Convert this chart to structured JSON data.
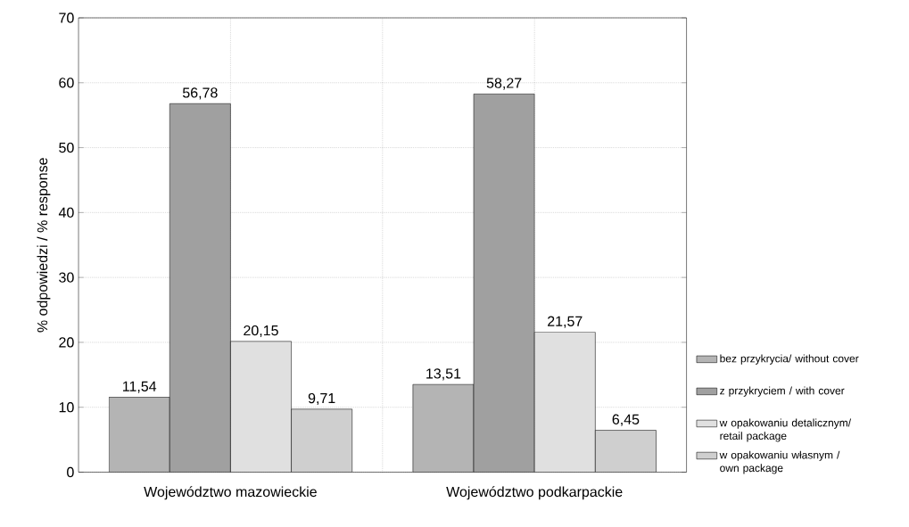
{
  "chart_data": {
    "type": "bar",
    "ylabel": "% odpowiedzi / % response",
    "categories": [
      "Województwo mazowieckie",
      "Województwo podkarpackie"
    ],
    "series": [
      {
        "name": "bez przykrycia/ without cover",
        "color": "#b4b4b4",
        "values": [
          11.54,
          13.51
        ],
        "value_labels": [
          "11,54",
          "13,51"
        ]
      },
      {
        "name": "z przykryciem / with cover",
        "color": "#a0a0a0",
        "values": [
          56.78,
          58.27
        ],
        "value_labels": [
          "56,78",
          "58,27"
        ]
      },
      {
        "name": "w opakowaniu detalicznym/ retail package",
        "color": "#e0e0e0",
        "values": [
          20.15,
          21.57
        ],
        "value_labels": [
          "20,15",
          "21,57"
        ]
      },
      {
        "name": "w opakowaniu własnym / own package",
        "color": "#cfcfcf",
        "values": [
          9.71,
          6.45
        ],
        "value_labels": [
          "9,71",
          "6,45"
        ]
      }
    ],
    "ylim": [
      0,
      70
    ],
    "yticks": [
      0,
      10,
      20,
      30,
      40,
      50,
      60,
      70
    ],
    "grid": true,
    "legend": "bottom right"
  }
}
